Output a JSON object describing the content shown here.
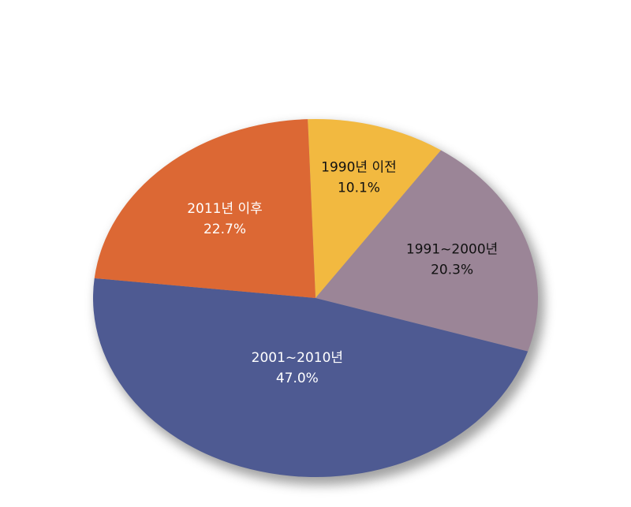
{
  "chart_data": {
    "type": "pie",
    "categories": [
      "1990년 이전",
      "1991~2000년",
      "2001~2010년",
      "2011년 이후"
    ],
    "values": [
      10.1,
      20.3,
      47.0,
      22.7
    ],
    "value_labels": [
      "10.1%",
      "20.3%",
      "47.0%",
      "22.7%"
    ],
    "colors": [
      "#f2b940",
      "#9b8597",
      "#4e5a92",
      "#dc6834"
    ]
  }
}
